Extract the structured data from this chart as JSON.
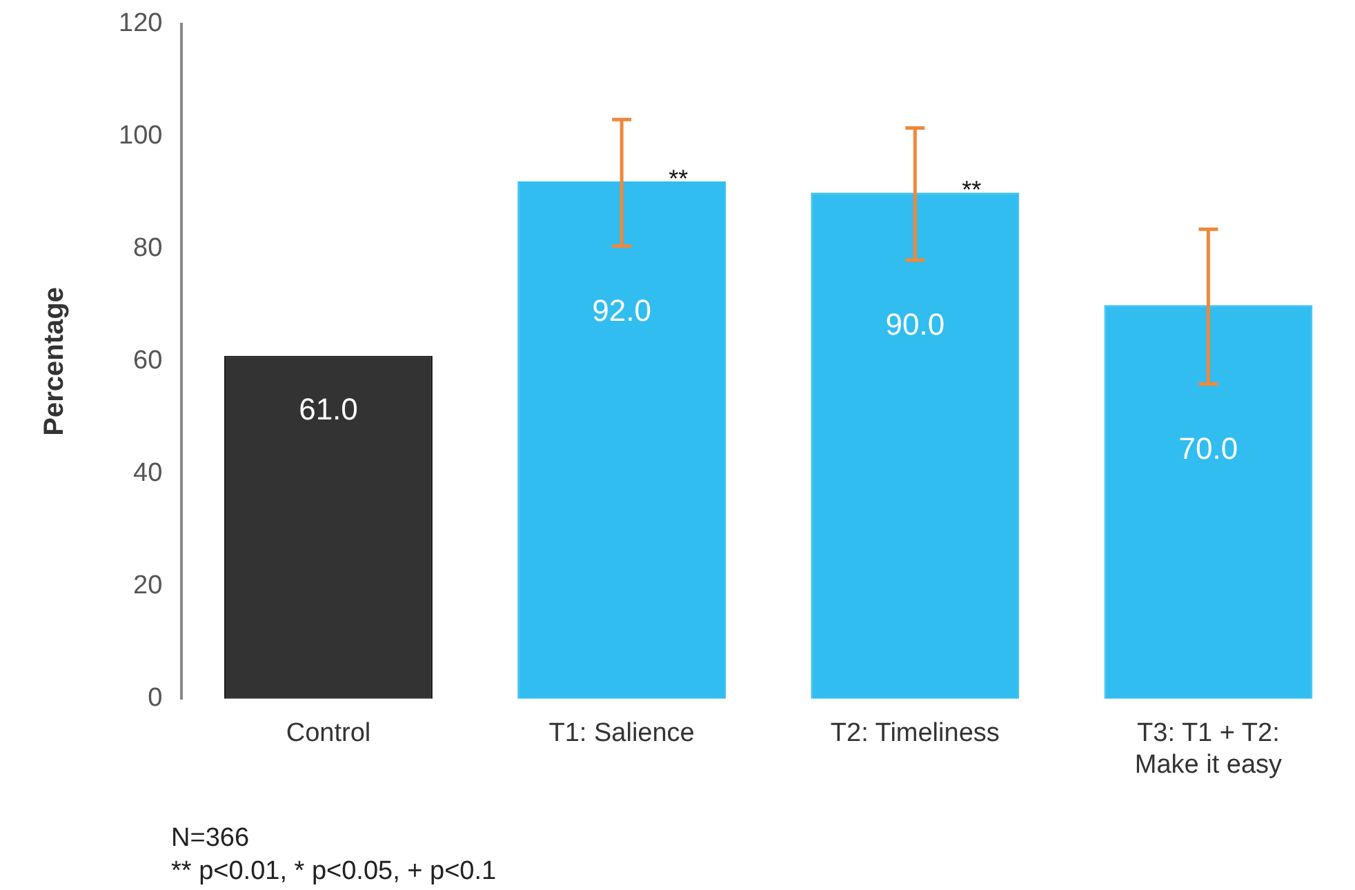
{
  "chart_data": {
    "type": "bar",
    "ylabel": "Percentage",
    "categories": [
      "Control",
      "T1: Salience",
      "T2: Timeliness",
      "T3: T1 + T2: Make it easy"
    ],
    "values": [
      61.0,
      92.0,
      90.0,
      70.0
    ],
    "colors": [
      "#333333",
      "#31bdf0",
      "#31bdf0",
      "#31bdf0"
    ],
    "errors": [
      null,
      [
        80.5,
        103
      ],
      [
        78,
        101.5
      ],
      [
        56,
        83.5
      ]
    ],
    "value_labels": [
      "61.0",
      "92.0",
      "90.0",
      "70.0"
    ],
    "ylim": [
      0,
      120
    ],
    "yticks": [
      0,
      20,
      40,
      60,
      80,
      100,
      120
    ],
    "grid": false,
    "legend": false,
    "annotations": [
      {
        "text": "**",
        "x": "T1: Salience",
        "y": 92
      },
      {
        "text": "**",
        "x": "T2: Timeliness",
        "y": 90
      },
      "N=366",
      "** p<0.01, * p<0.05, + p<0.1"
    ]
  }
}
